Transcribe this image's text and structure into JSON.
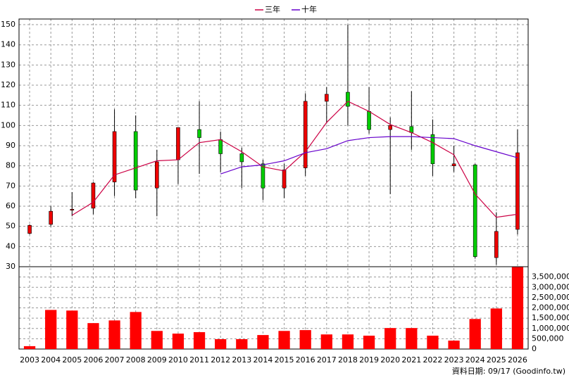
{
  "chart_data": {
    "type": "candlestick",
    "categories": [
      "2003",
      "2004",
      "2005",
      "2006",
      "2007",
      "2008",
      "2009",
      "2010",
      "2011",
      "2012",
      "2013",
      "2014",
      "2015",
      "2016",
      "2017",
      "2018",
      "2019",
      "2020",
      "2021",
      "2022",
      "2023",
      "2024",
      "2025",
      "2026"
    ],
    "open": [
      46.5,
      51,
      58,
      59,
      72,
      97,
      69,
      83,
      98,
      93,
      86,
      81,
      69,
      79,
      112,
      116.5,
      107,
      98,
      99.5,
      95.5,
      80,
      80.5,
      34.5,
      48.5
    ],
    "high": [
      51,
      60,
      67,
      72,
      108,
      105,
      88,
      99,
      112,
      97,
      89,
      83,
      81,
      116,
      119,
      150,
      119,
      104,
      117,
      103,
      90,
      81,
      57,
      98
    ],
    "low": [
      46,
      50,
      55,
      56,
      65,
      64,
      55,
      71,
      76,
      77,
      69,
      63,
      64,
      75,
      101,
      100,
      96,
      66,
      88,
      75,
      77,
      34,
      31,
      46
    ],
    "close": [
      50.5,
      57.5,
      58.5,
      71.5,
      97,
      68,
      82,
      99,
      94,
      86,
      82,
      69,
      78,
      112,
      115.5,
      109.5,
      98,
      100,
      96.5,
      81,
      81,
      35,
      47.5,
      86.5
    ],
    "up_color": "#ee0000",
    "down_color": "#00cc00",
    "series": [
      {
        "name": "三年",
        "color": "#cc0044",
        "values": [
          null,
          null,
          55.5,
          62,
          75.5,
          79,
          82.5,
          83,
          91.5,
          93,
          87,
          79.5,
          77.5,
          87,
          101.5,
          112,
          107,
          100.5,
          96.5,
          91.5,
          85.5,
          66,
          54.5,
          56
        ]
      },
      {
        "name": "十年",
        "color": "#6600cc",
        "values": [
          null,
          null,
          null,
          null,
          null,
          null,
          null,
          null,
          null,
          76,
          79.5,
          80.5,
          82.5,
          86.5,
          88.5,
          92.5,
          94,
          94.5,
          94.5,
          94,
          93.5,
          90,
          87,
          84
        ]
      }
    ],
    "ylim": [
      30,
      152.8
    ],
    "yticks": [
      30,
      40,
      50,
      60,
      70,
      80,
      90,
      100,
      110,
      120,
      130,
      140,
      150
    ],
    "volume": {
      "color": "#ff0000",
      "values": [
        140000,
        1900000,
        1870000,
        1260000,
        1390000,
        1800000,
        880000,
        750000,
        820000,
        480000,
        480000,
        680000,
        880000,
        920000,
        710000,
        710000,
        650000,
        1020000,
        1020000,
        650000,
        410000,
        1460000,
        1970000,
        3980000
      ],
      "ylim": [
        0,
        4000000
      ],
      "yticks": [
        0,
        {
          "value": 500000,
          "label": "500,000"
        },
        {
          "value": 1000000,
          "label": "1,000,000"
        },
        {
          "value": 1500000,
          "label": "1,500,000"
        },
        {
          "value": 2000000,
          "label": "2,000,000"
        },
        {
          "value": 2500000,
          "label": "2,500,000"
        },
        {
          "value": 3000000,
          "label": "3,000,000"
        },
        {
          "value": 3500000,
          "label": "3,500,000"
        }
      ]
    },
    "grid": true,
    "footer": "資料日期: 09/17 (Goodinfo.tw)"
  }
}
